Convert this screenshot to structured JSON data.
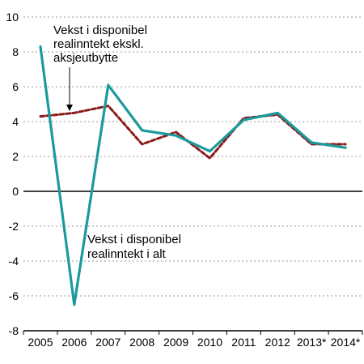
{
  "chart_data": {
    "type": "line",
    "x": [
      "2005",
      "2006",
      "2007",
      "2008",
      "2009",
      "2010",
      "2011",
      "2012",
      "2013*",
      "2014*"
    ],
    "ylim": [
      -8,
      10
    ],
    "yticks": [
      -8,
      -6,
      -4,
      -2,
      0,
      2,
      4,
      6,
      8,
      10
    ],
    "grid": "horizontal dotted",
    "series": [
      {
        "name": "Vekst i disponibel realinntekt i alt",
        "style": "solid",
        "color": "#1a9a9c",
        "values": [
          8.3,
          -6.5,
          6.1,
          3.5,
          3.2,
          2.3,
          4.1,
          4.5,
          2.8,
          2.5
        ]
      },
      {
        "name": "Vekst i disponibel realinntekt ekskl. aksjeutbytte",
        "style": "dashed",
        "color": "#8b1a1a",
        "values": [
          4.3,
          4.5,
          4.9,
          2.7,
          3.4,
          1.9,
          4.2,
          4.4,
          2.7,
          2.7
        ]
      }
    ],
    "annotations": [
      {
        "lines": [
          "Vekst i disponibel",
          "realinntekt ekskl.",
          "aksjeutbytte"
        ],
        "arrow": true
      },
      {
        "lines": [
          "Vekst i disponibel",
          "realinntekt i alt"
        ],
        "arrow": false
      }
    ]
  }
}
